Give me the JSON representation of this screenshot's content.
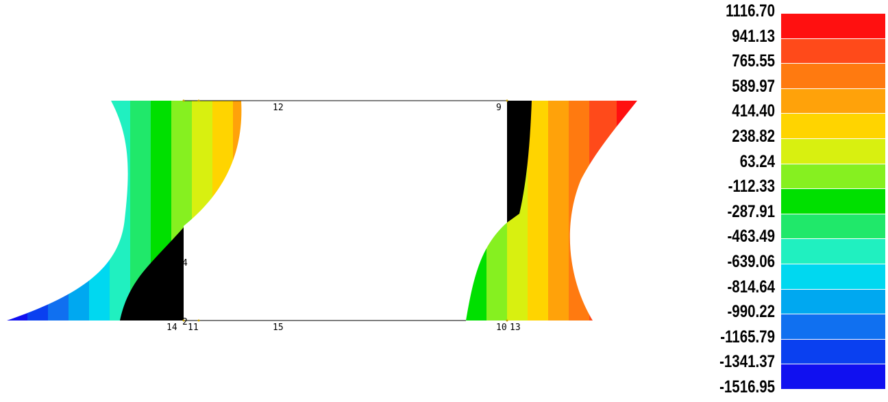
{
  "node_labels": {
    "n12": "12",
    "n9": "9",
    "n4": "4",
    "n2": "2",
    "n14": "14",
    "n11": "11",
    "n15": "15",
    "n10": "10",
    "n13": "13"
  },
  "legend": {
    "values": [
      "1116.70",
      "941.13",
      "765.55",
      "589.97",
      "414.40",
      "238.82",
      "63.24",
      "-112.33",
      "-287.91",
      "-463.49",
      "-639.06",
      "-814.64",
      "-990.22",
      "-1165.79",
      "-1341.37",
      "-1516.95"
    ],
    "colors": [
      "#ff1010",
      "#ff4a1a",
      "#ff7a10",
      "#ffa20a",
      "#ffd400",
      "#d8f010",
      "#86f020",
      "#00e000",
      "#20e86a",
      "#20f0c0",
      "#00d8f0",
      "#00a8f0",
      "#1070f0",
      "#0a40f0",
      "#1010f0"
    ]
  }
}
